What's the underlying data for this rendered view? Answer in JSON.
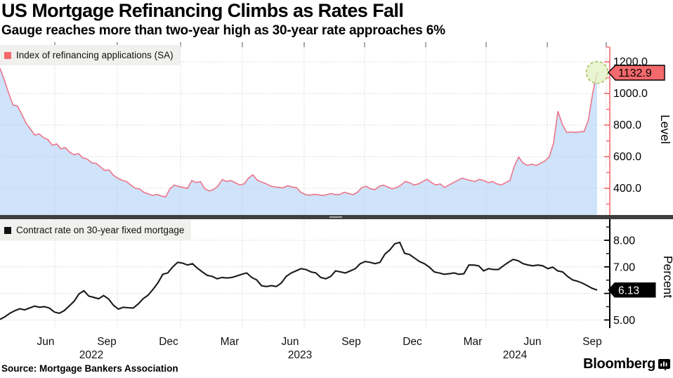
{
  "header": {
    "title": "US Mortgage Refinancing Climbs as Rates Fall",
    "subtitle": "Gauge reaches more than two-year high as 30-year rate approaches 6%"
  },
  "footer": {
    "source": "Source: Mortgage Bankers Association",
    "brand": "Bloomberg",
    "brand_icon": "bloomberg-chart-bars-mark"
  },
  "x_axis": {
    "months": [
      "Jun",
      "Sep",
      "Dec",
      "Mar",
      "Jun",
      "Sep",
      "Dec",
      "Mar",
      "Jun",
      "Sep"
    ],
    "years": [
      "2022",
      "2023",
      "2024"
    ]
  },
  "colors": {
    "accent_red": "#f4696b",
    "refi_line": "#ec7589",
    "refi_fill": "#cfe3fa",
    "rate_line": "#1a1a1a",
    "grid": "#c8c8c8",
    "legend_bg": "#f0f0ee",
    "divider": "#3f3f3f",
    "highlight_circle_fill": "#e4f1c5",
    "highlight_circle_stroke": "#a9c25d",
    "refi_chip_bg": "#f4696b",
    "rate_chip_bg": "#000000"
  },
  "chart_data": [
    {
      "type": "area",
      "title": "Index of refinancing applications (SA)",
      "ylabel": "Level",
      "yticks": [
        "1200.0",
        "1000.0",
        "800.0",
        "600.0",
        "400.0"
      ],
      "ylim": [
        231,
        1293
      ],
      "grid": true,
      "legend_position": "top-left",
      "last_value_label": "1132.9",
      "highlight_last_point": true,
      "series": [
        {
          "name": "Index of refinancing applications (SA)",
          "values": [
            1160,
            1085,
            1000,
            927,
            921,
            868,
            812,
            774,
            737,
            744,
            720,
            708,
            673,
            681,
            650,
            657,
            628,
            612,
            620,
            592,
            585,
            562,
            558,
            537,
            513,
            517,
            483,
            465,
            451,
            443,
            421,
            402,
            396,
            375,
            366,
            354,
            362,
            351,
            346,
            398,
            420,
            412,
            406,
            399,
            449,
            437,
            442,
            397,
            383,
            392,
            414,
            455,
            443,
            449,
            435,
            421,
            428,
            464,
            486,
            452,
            440,
            430,
            415,
            409,
            406,
            403,
            417,
            408,
            405,
            375,
            362,
            356,
            362,
            359,
            354,
            360,
            367,
            359,
            362,
            375,
            367,
            360,
            375,
            405,
            413,
            397,
            391,
            413,
            420,
            408,
            397,
            405,
            420,
            443,
            435,
            421,
            428,
            443,
            457,
            436,
            421,
            428,
            406,
            421,
            436,
            450,
            464,
            456,
            449,
            443,
            457,
            449,
            436,
            443,
            428,
            421,
            436,
            450,
            539,
            598,
            560,
            545,
            553,
            544,
            558,
            573,
            598,
            687,
            887,
            806,
            754,
            756,
            754,
            757,
            759,
            833,
            1005,
            1132.9
          ]
        }
      ]
    },
    {
      "type": "line",
      "title": "Contract rate on 30-year fixed mortgage",
      "ylabel": "Percent",
      "yticks": [
        "8.00",
        "7.00",
        "6.00",
        "5.00"
      ],
      "ylim": [
        4.69,
        8.79
      ],
      "grid": true,
      "legend_position": "top-left",
      "last_value_label": "6.13",
      "series": [
        {
          "name": "Contract rate on 30-year fixed mortgage",
          "values": [
            5.02,
            5.12,
            5.25,
            5.35,
            5.42,
            5.38,
            5.45,
            5.52,
            5.48,
            5.5,
            5.45,
            5.3,
            5.25,
            5.35,
            5.52,
            5.7,
            5.98,
            6.1,
            5.9,
            5.85,
            5.8,
            5.92,
            5.79,
            5.55,
            5.41,
            5.48,
            5.46,
            5.45,
            5.6,
            5.8,
            5.93,
            6.15,
            6.4,
            6.72,
            6.77,
            7.0,
            7.17,
            7.14,
            7.07,
            7.12,
            6.95,
            6.81,
            6.68,
            6.64,
            6.55,
            6.6,
            6.58,
            6.6,
            6.66,
            6.72,
            6.77,
            6.6,
            6.51,
            6.29,
            6.26,
            6.29,
            6.26,
            6.39,
            6.64,
            6.77,
            6.85,
            6.93,
            6.9,
            6.81,
            6.77,
            6.6,
            6.55,
            6.64,
            6.85,
            6.81,
            6.77,
            6.85,
            6.93,
            7.12,
            7.2,
            7.17,
            7.12,
            7.17,
            7.48,
            7.64,
            7.87,
            7.92,
            7.51,
            7.46,
            7.33,
            7.2,
            7.12,
            6.99,
            6.81,
            6.77,
            6.72,
            6.74,
            6.77,
            6.72,
            6.74,
            7.07,
            7.07,
            7.04,
            6.85,
            6.93,
            6.9,
            6.9,
            7.04,
            7.17,
            7.28,
            7.23,
            7.12,
            7.07,
            7.04,
            7.07,
            7.04,
            6.93,
            6.99,
            6.85,
            6.81,
            6.64,
            6.51,
            6.46,
            6.39,
            6.29,
            6.19,
            6.13
          ]
        }
      ]
    }
  ]
}
